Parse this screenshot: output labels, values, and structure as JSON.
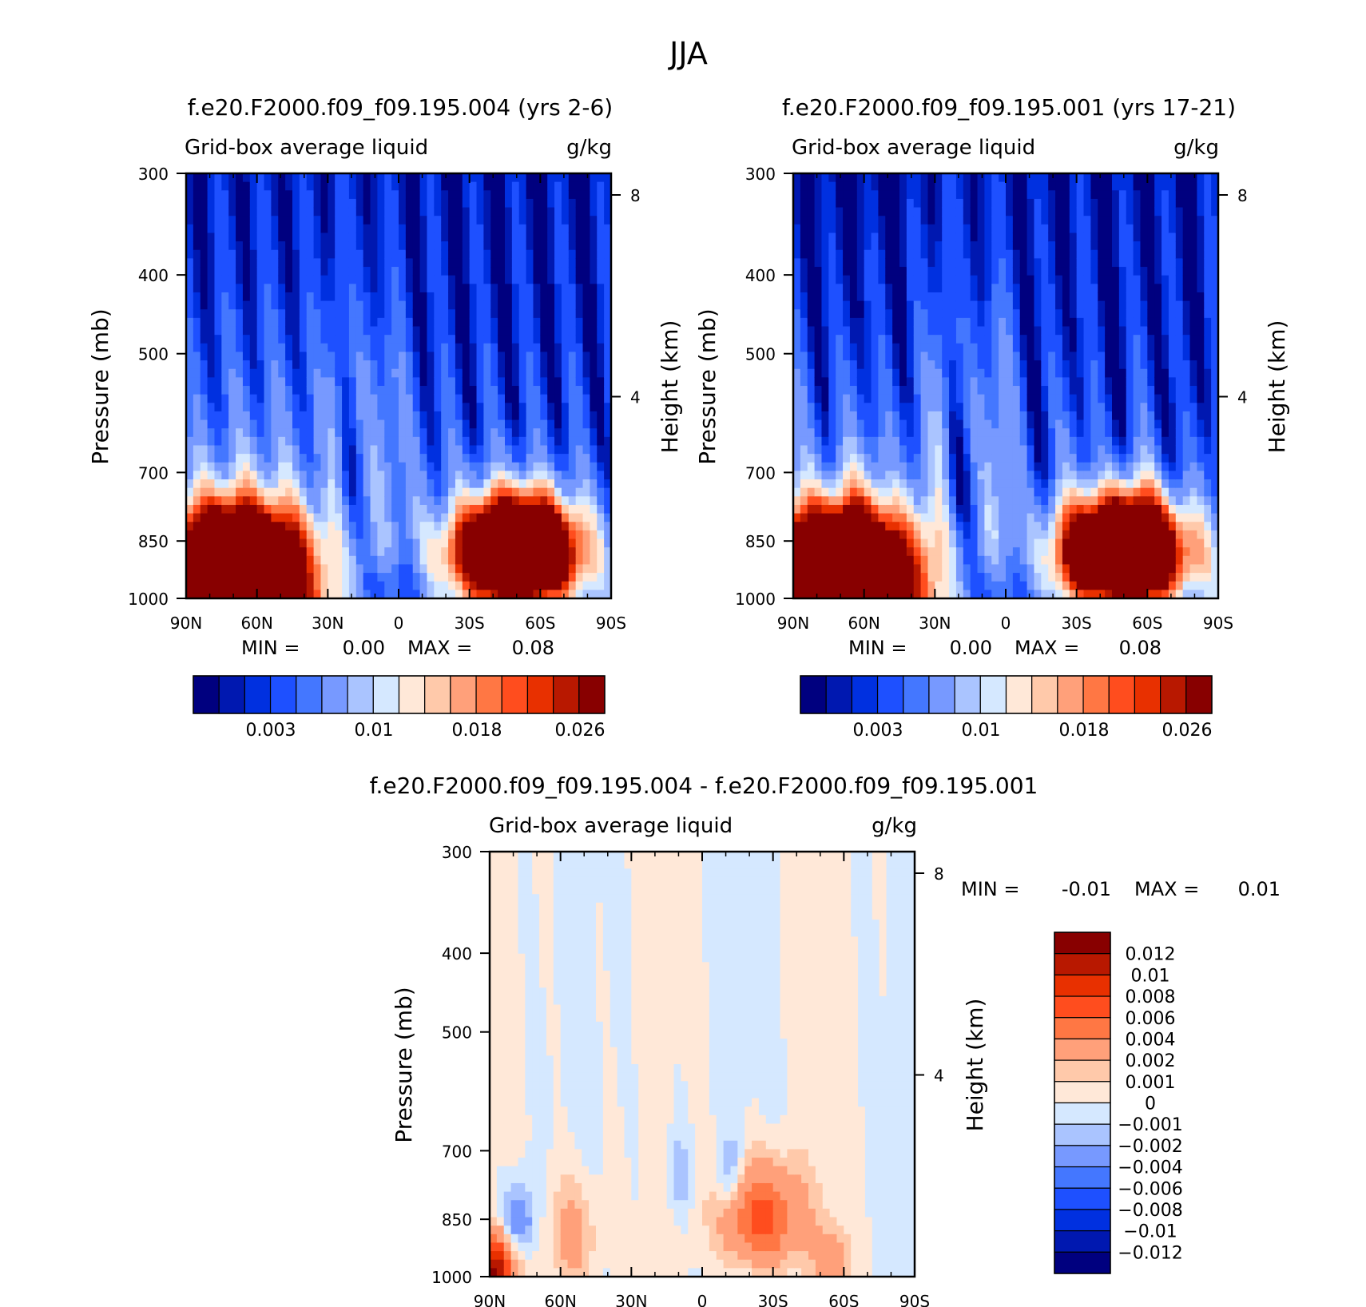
{
  "title": "JJA",
  "min_label": "MIN =",
  "max_label": "MAX =",
  "colors": {
    "abs_palette": [
      "#00007f",
      "#0018b0",
      "#0030e0",
      "#1e50ff",
      "#4477ff",
      "#7799ff",
      "#aac4ff",
      "#d5e8ff",
      "#ffe8d8",
      "#ffc9aa",
      "#ffa07a",
      "#ff7744",
      "#ff4d1e",
      "#e83000",
      "#b81800",
      "#880000"
    ],
    "diff_palette": [
      "#00007f",
      "#0018b0",
      "#0030e0",
      "#1e50ff",
      "#4477ff",
      "#7799ff",
      "#aac4ff",
      "#d5e8ff",
      "#ffe8d8",
      "#ffc9aa",
      "#ffa07a",
      "#ff7744",
      "#ff4d1e",
      "#e83000",
      "#b81800",
      "#880000"
    ]
  },
  "chart_data": [
    {
      "type": "heatmap",
      "title": "f.e20.F2000.f09_f09.195.004 (yrs 2-6)",
      "subtitle_left": "Grid-box average liquid",
      "subtitle_right": "g/kg",
      "ylabel": "Pressure (mb)",
      "y2label": "Height (km)",
      "x_ticks": [
        "90N",
        "60N",
        "30N",
        "0",
        "30S",
        "60S",
        "90S"
      ],
      "y_ticks": [
        300,
        400,
        500,
        700,
        850,
        1000
      ],
      "y2_ticks": [
        8,
        4
      ],
      "ylim": [
        1000,
        300
      ],
      "min_value": "0.00",
      "max_value": "0.08",
      "colorbar_labels": [
        "0.003",
        "0.01",
        "0.018",
        "0.026"
      ],
      "field": "model_004"
    },
    {
      "type": "heatmap",
      "title": "f.e20.F2000.f09_f09.195.001 (yrs 17-21)",
      "subtitle_left": "Grid-box average liquid",
      "subtitle_right": "g/kg",
      "ylabel": "Pressure (mb)",
      "y2label": "Height (km)",
      "x_ticks": [
        "90N",
        "60N",
        "30N",
        "0",
        "30S",
        "60S",
        "90S"
      ],
      "y_ticks": [
        300,
        400,
        500,
        700,
        850,
        1000
      ],
      "y2_ticks": [
        8,
        4
      ],
      "ylim": [
        1000,
        300
      ],
      "min_value": "0.00",
      "max_value": "0.08",
      "colorbar_labels": [
        "0.003",
        "0.01",
        "0.018",
        "0.026"
      ],
      "field": "model_001"
    },
    {
      "type": "heatmap",
      "title": "f.e20.F2000.f09_f09.195.004 - f.e20.F2000.f09_f09.195.001",
      "subtitle_left": "Grid-box average liquid",
      "subtitle_right": "g/kg",
      "ylabel": "Pressure (mb)",
      "y2label": "Height (km)",
      "x_ticks": [
        "90N",
        "60N",
        "30N",
        "0",
        "30S",
        "60S",
        "90S"
      ],
      "y_ticks": [
        300,
        400,
        500,
        700,
        850,
        1000
      ],
      "y2_ticks": [
        8,
        4
      ],
      "ylim": [
        1000,
        300
      ],
      "min_value": "-0.01",
      "max_value": "0.01",
      "colorbar_labels": [
        "0.012",
        "0.01",
        "0.008",
        "0.006",
        "0.004",
        "0.002",
        "0.001",
        "0",
        "-0.001",
        "-0.002",
        "-0.004",
        "-0.006",
        "-0.008",
        "-0.01",
        "-0.012"
      ],
      "field": "difference"
    }
  ]
}
